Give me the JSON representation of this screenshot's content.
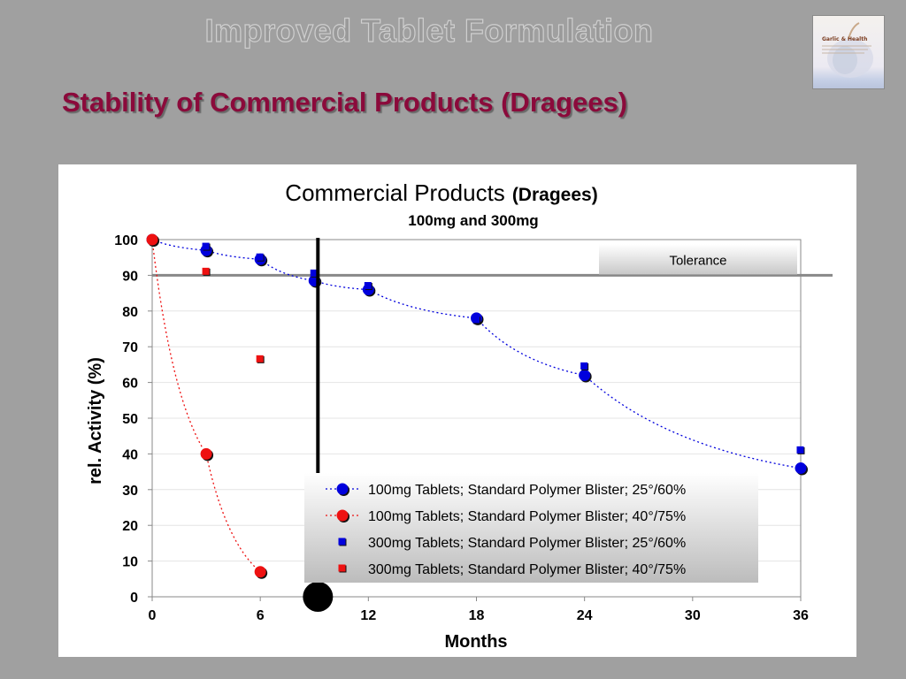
{
  "slide": {
    "title": "Improved Tablet Formulation",
    "subtitle": "Stability of Commercial Products (Dragees)",
    "logo_text": "Garlic & Health"
  },
  "colors": {
    "blue": "#0000dd",
    "red": "#ee1111",
    "title_red": "#8b0a3b",
    "background": "#a0a0a0"
  },
  "chart_data": {
    "type": "scatter",
    "title": "Commercial Products",
    "title_suffix": "(Dragees)",
    "subtitle": "100mg and 300mg",
    "xlabel": "Months",
    "ylabel": "rel. Activity (%)",
    "xlim": [
      0,
      36
    ],
    "ylim": [
      0,
      100
    ],
    "xticks": [
      0,
      6,
      12,
      18,
      24,
      30,
      36
    ],
    "yticks": [
      0,
      10,
      20,
      30,
      40,
      50,
      60,
      70,
      80,
      90,
      100
    ],
    "grid": "horizontal",
    "legend_position": "bottom-right",
    "series": [
      {
        "name": "100mg Tablets; Standard Polymer Blister; 25°/60%",
        "marker": "circle",
        "color": "#0000dd",
        "line": "dotted",
        "x": [
          0,
          3,
          6,
          9,
          12,
          18,
          24,
          36
        ],
        "y": [
          100,
          97,
          94.5,
          88.5,
          86,
          78,
          62,
          36
        ]
      },
      {
        "name": "100mg Tablets; Standard Polymer Blister; 40°/75%",
        "marker": "circle",
        "color": "#ee1111",
        "line": "dotted",
        "x": [
          0,
          3,
          6
        ],
        "y": [
          100,
          40,
          7
        ]
      },
      {
        "name": "300mg Tablets; Standard Polymer Blister; 25°/60%",
        "marker": "square",
        "color": "#0000dd",
        "line": "none",
        "x": [
          3,
          6,
          9,
          12,
          18,
          24,
          36
        ],
        "y": [
          98,
          95,
          90.5,
          87,
          77.5,
          64.5,
          41
        ]
      },
      {
        "name": "300mg Tablets; Standard Polymer Blister; 40°/75%",
        "marker": "square",
        "color": "#ee1111",
        "line": "none",
        "x": [
          3,
          6
        ],
        "y": [
          91,
          66.5
        ]
      }
    ],
    "tolerance": {
      "label": "Tolerance",
      "value": 90
    },
    "marker_line_month": 9.2
  }
}
